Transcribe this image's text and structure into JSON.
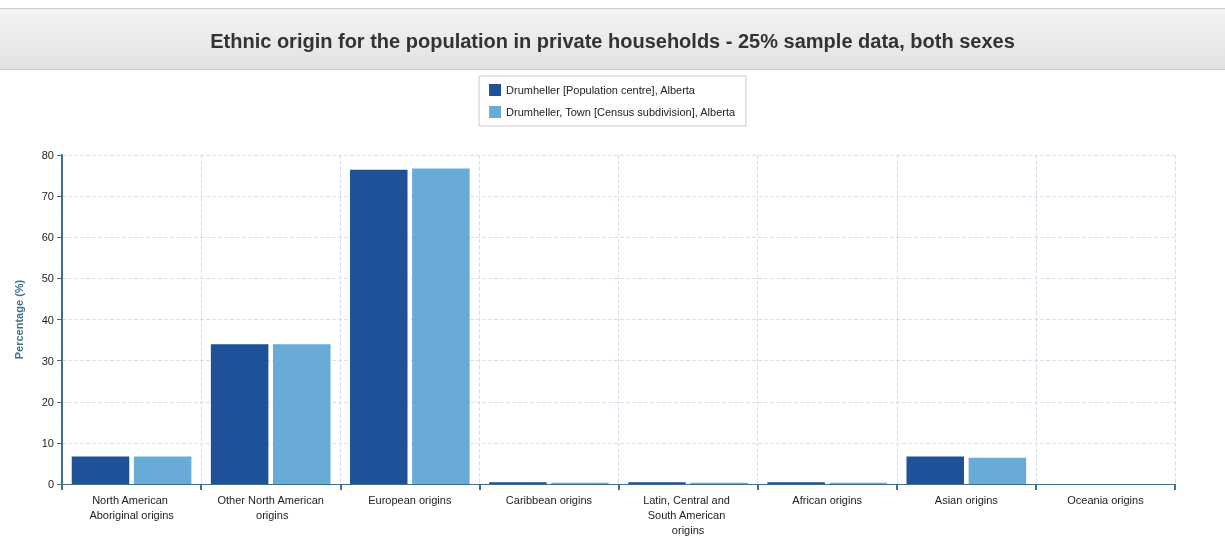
{
  "chart_data": {
    "type": "bar",
    "title": "Ethnic origin for the population in private households - 25% sample data, both sexes",
    "ylabel": "Percentage (%)",
    "categories": [
      "North American Aboriginal origins",
      "Other North American origins",
      "European origins",
      "Caribbean origins",
      "Latin, Central and South American origins",
      "African origins",
      "Asian origins",
      "Oceania origins"
    ],
    "series": [
      {
        "name": "Drumheller [Population centre], Alberta",
        "color": "#1f5199",
        "values": [
          6.7,
          34.0,
          76.4,
          0.4,
          0.4,
          0.4,
          6.7,
          0
        ]
      },
      {
        "name": "Drumheller, Town [Census subdivision], Alberta",
        "color": "#67abd6",
        "values": [
          6.7,
          34.0,
          76.7,
          0.3,
          0.3,
          0.3,
          6.4,
          0
        ]
      }
    ],
    "ylim": [
      0,
      80
    ],
    "yticks": [
      0,
      10,
      20,
      30,
      40,
      50,
      60,
      70,
      80
    ],
    "grid": true,
    "legend": "top"
  }
}
